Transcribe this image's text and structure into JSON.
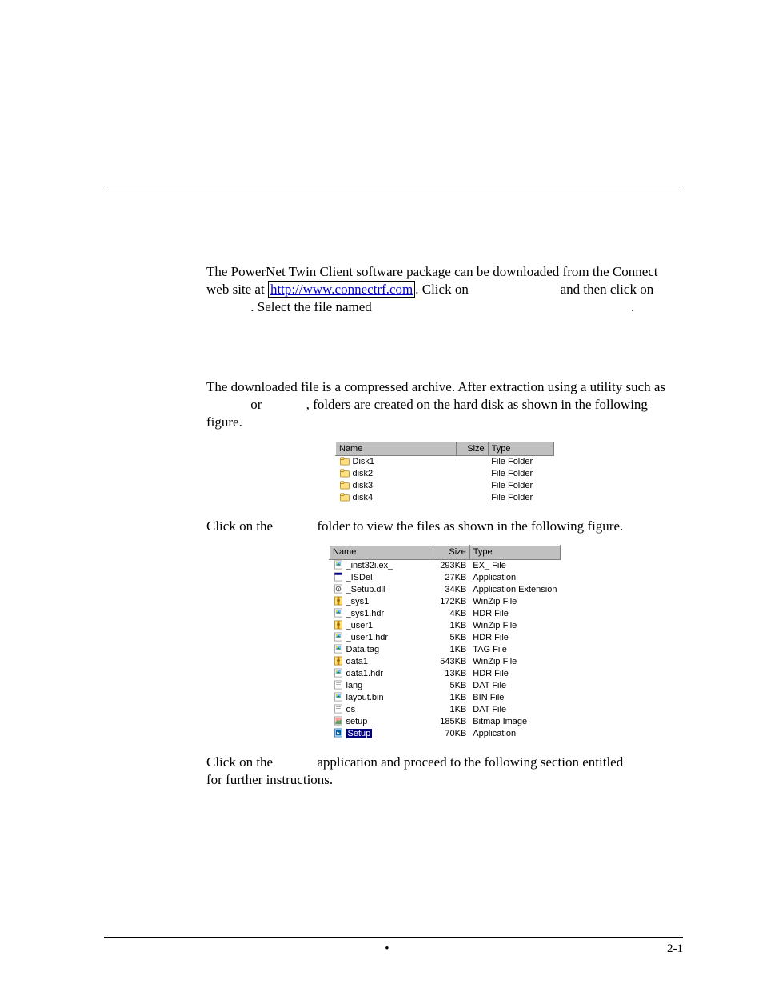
{
  "paragraphs": {
    "p1_pre": "The PowerNet Twin Client software package can be downloaded from the Connect web site at ",
    "p1_link": "http://www.connectrf.com",
    "p1_mid1": ". Click on ",
    "p1_mid2": " and then click on ",
    "p1_cont": ". Select the file named ",
    "p1_end": ".",
    "p2_a": "The downloaded file is a compressed archive. After extraction using a utility such as ",
    "p2_b": " or ",
    "p2_c": ", folders are created on the hard disk as shown in the following figure.",
    "p3_a": "Click on the ",
    "p3_b": " folder to view the files as shown in the following figure.",
    "p4_a": "Click on the ",
    "p4_b": " application and proceed to the following section entitled ",
    "p4_c": " for further instructions."
  },
  "table1": {
    "headers": {
      "name": "Name",
      "size": "Size",
      "type": "Type"
    },
    "col_widths": {
      "name": 150,
      "size": 40,
      "type": 82
    },
    "rows": [
      {
        "icon": "folder",
        "name": "Disk1",
        "size": "",
        "type": "File Folder"
      },
      {
        "icon": "folder",
        "name": "disk2",
        "size": "",
        "type": "File Folder"
      },
      {
        "icon": "folder",
        "name": "disk3",
        "size": "",
        "type": "File Folder"
      },
      {
        "icon": "folder",
        "name": "disk4",
        "size": "",
        "type": "File Folder"
      }
    ]
  },
  "table2": {
    "headers": {
      "name": "Name",
      "size": "Size",
      "type": "Type"
    },
    "col_widths": {
      "name": 132,
      "size": 46,
      "type": 110
    },
    "rows": [
      {
        "icon": "file-img",
        "name": "_inst32i.ex_",
        "size": "293KB",
        "type": "EX_ File"
      },
      {
        "icon": "file-app",
        "name": "_ISDel",
        "size": "27KB",
        "type": "Application"
      },
      {
        "icon": "file-dll",
        "name": "_Setup.dll",
        "size": "34KB",
        "type": "Application Extension"
      },
      {
        "icon": "file-zip",
        "name": "_sys1",
        "size": "172KB",
        "type": "WinZip File"
      },
      {
        "icon": "file-img",
        "name": "_sys1.hdr",
        "size": "4KB",
        "type": "HDR File"
      },
      {
        "icon": "file-zip",
        "name": "_user1",
        "size": "1KB",
        "type": "WinZip File"
      },
      {
        "icon": "file-img",
        "name": "_user1.hdr",
        "size": "5KB",
        "type": "HDR File"
      },
      {
        "icon": "file-img",
        "name": "Data.tag",
        "size": "1KB",
        "type": "TAG File"
      },
      {
        "icon": "file-zip",
        "name": "data1",
        "size": "543KB",
        "type": "WinZip File"
      },
      {
        "icon": "file-img",
        "name": "data1.hdr",
        "size": "13KB",
        "type": "HDR File"
      },
      {
        "icon": "file-txt",
        "name": "lang",
        "size": "5KB",
        "type": "DAT File"
      },
      {
        "icon": "file-img",
        "name": "layout.bin",
        "size": "1KB",
        "type": "BIN File"
      },
      {
        "icon": "file-txt",
        "name": "os",
        "size": "1KB",
        "type": "DAT File"
      },
      {
        "icon": "file-bmp",
        "name": "setup",
        "size": "185KB",
        "type": "Bitmap Image"
      },
      {
        "icon": "file-exe",
        "name": "Setup",
        "size": "70KB",
        "type": "Application",
        "selected": true
      }
    ]
  },
  "footer": {
    "bullet": "•",
    "page_num": "2-1"
  },
  "icons": {
    "folder": "<rect x='1' y='4' width='12' height='8' rx='1' fill='#ffe080' stroke='#a07000' stroke-width='0.7'/><rect x='1' y='2' width='5' height='3' rx='1' fill='#ffe080' stroke='#a07000' stroke-width='0.7'/>",
    "file-img": "<rect x='2' y='1' width='10' height='11' fill='#fff' stroke='#808080' stroke-width='0.7'/><rect x='3.5' y='2.5' width='7' height='5' fill='#80c0ff'/><circle cx='5' cy='4' r='1' fill='#ffe000'/><polygon points='4,7 7,4.5 10,7' fill='#208020'/>",
    "file-app": "<rect x='2' y='1' width='10' height='11' fill='#fff' stroke='#808080' stroke-width='0.7'/><rect x='2' y='1' width='10' height='3' fill='#000080'/>",
    "file-dll": "<rect x='2' y='1' width='10' height='11' fill='#fff' stroke='#808080' stroke-width='0.7'/><circle cx='7' cy='6.5' r='3' fill='none' stroke='#606060' stroke-width='1.2'/><circle cx='7' cy='6.5' r='1.1' fill='#606060'/>",
    "file-zip": "<rect x='2' y='1' width='10' height='11' fill='#ffe080' stroke='#a07000' stroke-width='0.7'/><rect x='5.5' y='1' width='3' height='11' fill='#c08000'/><rect x='5' y='5' width='4' height='2' fill='#806000'/>",
    "file-txt": "<rect x='2' y='1' width='10' height='11' fill='#fff' stroke='#808080' stroke-width='0.7'/><line x1='4' y1='4' x2='10' y2='4' stroke='#808080' stroke-width='0.7'/><line x1='4' y1='6' x2='10' y2='6' stroke='#808080' stroke-width='0.7'/><line x1='4' y1='8' x2='8' y2='8' stroke='#808080' stroke-width='0.7'/>",
    "file-bmp": "<rect x='2' y='1' width='10' height='11' fill='#fff' stroke='#808080' stroke-width='0.7'/><rect x='3' y='2' width='8' height='9' fill='#ffa0a0'/><polygon points='3,9 6,5 8,7 11,4 11,11 3,11' fill='#60a060'/>",
    "file-exe": "<rect x='2' y='1' width='10' height='11' fill='#c0e0ff' stroke='#0060a0' stroke-width='0.7'/><rect x='3.5' y='3' width='7' height='7' fill='#0060a0'/><polygon points='5,5 9,7 5,9' fill='#fff'/>"
  }
}
